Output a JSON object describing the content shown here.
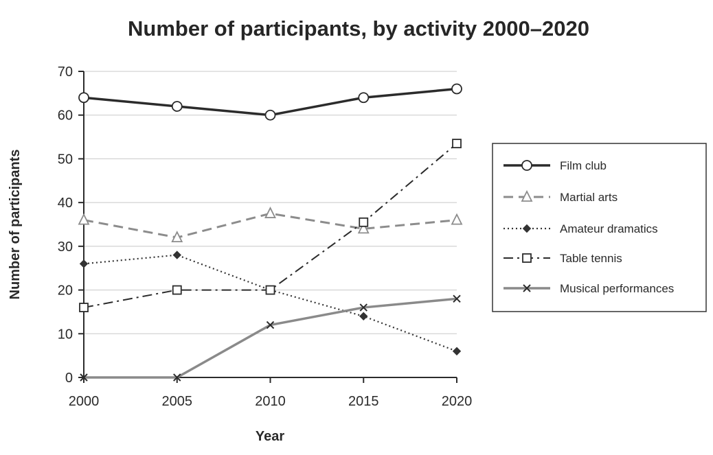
{
  "chart_data": {
    "type": "line",
    "title": "Number of participants, by activity 2000–2020",
    "xlabel": "Year",
    "ylabel": "Number of participants",
    "x": [
      2000,
      2005,
      2010,
      2015,
      2020
    ],
    "x_tick_labels": [
      "2000",
      "2005",
      "2010",
      "2015",
      "2020"
    ],
    "ylim": [
      0,
      70
    ],
    "y_ticks": [
      0,
      10,
      20,
      30,
      40,
      50,
      60,
      70
    ],
    "grid": "horizontal",
    "legend_position": "right",
    "series": [
      {
        "name": "Film club",
        "values": [
          64,
          62,
          60,
          64,
          66
        ],
        "color": "#2b2b2b",
        "line_style": "solid",
        "marker": "circle"
      },
      {
        "name": "Martial arts",
        "values": [
          36,
          32,
          37.5,
          34,
          36
        ],
        "color": "#8c8c8c",
        "line_style": "dashed",
        "marker": "triangle"
      },
      {
        "name": "Amateur dramatics",
        "values": [
          26,
          28,
          20,
          14,
          6
        ],
        "color": "#333333",
        "line_style": "dotted",
        "marker": "diamond"
      },
      {
        "name": "Table tennis",
        "values": [
          16,
          20,
          20,
          35.5,
          53.5
        ],
        "color": "#2b2b2b",
        "line_style": "dash-dot",
        "marker": "square"
      },
      {
        "name": "Musical performances",
        "values": [
          0,
          0,
          12,
          16,
          18
        ],
        "color": "#8a8a8a",
        "line_style": "solid",
        "marker": "x"
      }
    ]
  }
}
